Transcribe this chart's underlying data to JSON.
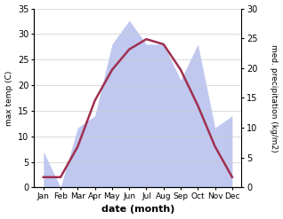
{
  "months": [
    "Jan",
    "Feb",
    "Mar",
    "Apr",
    "May",
    "Jun",
    "Jul",
    "Aug",
    "Sep",
    "Oct",
    "Nov",
    "Dec"
  ],
  "temperature": [
    2,
    2,
    8,
    17,
    23,
    27,
    29,
    28,
    23,
    16,
    8,
    2
  ],
  "precipitation": [
    6,
    0,
    10,
    12,
    24,
    28,
    24,
    24,
    18,
    24,
    10,
    12
  ],
  "temp_color": "#a03050",
  "precip_fill_color": "#c0c8f0",
  "background_color": "#ffffff",
  "xlabel": "date (month)",
  "ylabel_left": "max temp (C)",
  "ylabel_right": "med. precipitation (kg/m2)",
  "ylim_left": [
    0,
    35
  ],
  "ylim_right": [
    0,
    30
  ],
  "yticks_left": [
    0,
    5,
    10,
    15,
    20,
    25,
    30,
    35
  ],
  "yticks_right": [
    0,
    5,
    10,
    15,
    20,
    25,
    30
  ],
  "figsize": [
    3.18,
    2.47
  ],
  "dpi": 100
}
